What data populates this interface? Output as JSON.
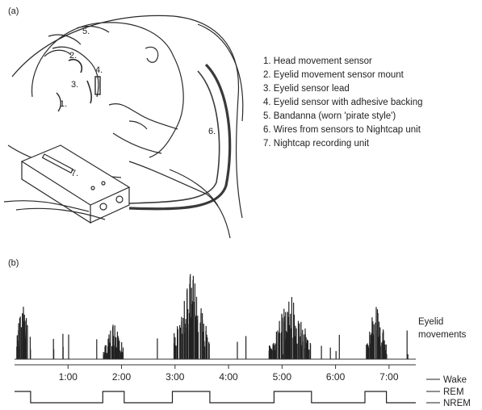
{
  "panel_a": {
    "label": "(a)",
    "callouts": [
      "1.",
      "2.",
      "3.",
      "4.",
      "5.",
      "6.",
      "7."
    ],
    "legend": [
      "1. Head movement sensor",
      "2. Eyelid movement sensor mount",
      "3. Eyelid sensor lead",
      "4. Eyelid sensor with adhesive backing",
      "5. Bandanna (worn 'pirate style')",
      "6. Wires from sensors to Nightcap unit",
      "7. Nightcap recording unit"
    ]
  },
  "panel_b": {
    "label": "(b)",
    "eyelid_label_line1": "Eyelid",
    "eyelid_label_line2": "movements",
    "time_ticks": [
      "1:00",
      "2:00",
      "3:00",
      "4:00",
      "5:00",
      "6:00",
      "7:00"
    ],
    "stage_labels": [
      "Wake",
      "REM",
      "NREM"
    ]
  },
  "chart_data": {
    "type": "bar",
    "xlabel": "",
    "ylabel": "",
    "x_ticks": [
      "1:00",
      "2:00",
      "3:00",
      "4:00",
      "5:00",
      "6:00",
      "7:00"
    ],
    "bursts": [
      {
        "start": 0.02,
        "end": 0.3,
        "peak": 0.85
      },
      {
        "start": 1.65,
        "end": 2.05,
        "peak": 0.45
      },
      {
        "start": 2.95,
        "end": 3.65,
        "peak": 1.0
      },
      {
        "start": 4.75,
        "end": 5.55,
        "peak": 0.75
      },
      {
        "start": 6.55,
        "end": 6.95,
        "peak": 0.7
      }
    ],
    "hypnogram": {
      "levels": [
        "Wake",
        "REM",
        "NREM"
      ],
      "segments": [
        {
          "stage": "REM",
          "start": 0.0,
          "end": 0.3
        },
        {
          "stage": "NREM",
          "start": 0.3,
          "end": 1.65
        },
        {
          "stage": "REM",
          "start": 1.65,
          "end": 2.05
        },
        {
          "stage": "NREM",
          "start": 2.05,
          "end": 2.95
        },
        {
          "stage": "REM",
          "start": 2.95,
          "end": 3.65
        },
        {
          "stage": "NREM",
          "start": 3.65,
          "end": 4.85
        },
        {
          "stage": "REM",
          "start": 4.85,
          "end": 5.55
        },
        {
          "stage": "NREM",
          "start": 5.55,
          "end": 6.55
        },
        {
          "stage": "REM",
          "start": 6.55,
          "end": 6.95
        },
        {
          "stage": "NREM",
          "start": 6.95,
          "end": 7.5
        }
      ]
    }
  }
}
